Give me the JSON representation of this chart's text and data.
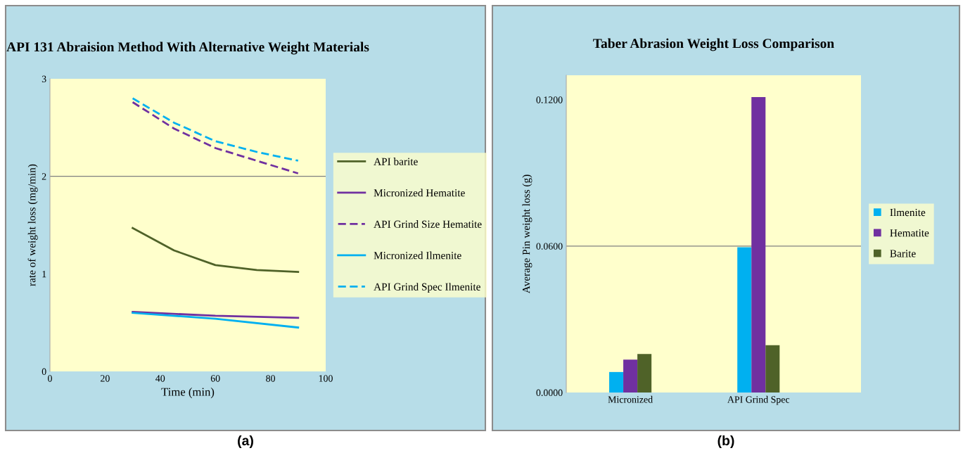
{
  "chart_data": [
    {
      "type": "line",
      "title": "API 131 Abraision Method With Alternative Weight Materials",
      "xlabel": "Time (min)",
      "ylabel": "rate of weight loss (mg/min)",
      "xlim": [
        0,
        100
      ],
      "xticks": [
        0,
        20,
        40,
        60,
        80,
        100
      ],
      "ylim": [
        0,
        3
      ],
      "yticks": [
        0,
        1,
        2,
        3
      ],
      "ref_lines": [
        {
          "axis": "y",
          "value": 2,
          "color": "#808080"
        }
      ],
      "legend": "right",
      "grid": false,
      "annotations": [
        "(a)"
      ],
      "series": [
        {
          "name": "API barite",
          "color": "#4f6228",
          "line_style": "solid",
          "x": [
            30,
            45,
            60,
            75,
            90
          ],
          "values": [
            1.47,
            1.24,
            1.09,
            1.04,
            1.02
          ]
        },
        {
          "name": "Micronized Hematite",
          "color": "#7030a0",
          "line_style": "solid",
          "x": [
            30,
            60,
            90
          ],
          "values": [
            0.61,
            0.57,
            0.55
          ]
        },
        {
          "name": "API Grind Size Hematite",
          "color": "#7030a0",
          "line_style": "dashed",
          "x": [
            30,
            45,
            60,
            75,
            90
          ],
          "values": [
            2.76,
            2.49,
            2.29,
            2.16,
            2.03
          ]
        },
        {
          "name": "Micronized Ilmenite",
          "color": "#00b0f0",
          "line_style": "solid",
          "x": [
            30,
            60,
            90
          ],
          "values": [
            0.6,
            0.54,
            0.45
          ]
        },
        {
          "name": "API Grind Spec Ilmenite",
          "color": "#00b0f0",
          "line_style": "dashed",
          "x": [
            30,
            45,
            60,
            75,
            90
          ],
          "values": [
            2.8,
            2.55,
            2.36,
            2.25,
            2.16
          ]
        }
      ]
    },
    {
      "type": "bar",
      "title": "Taber Abrasion Weight Loss Comparison",
      "ylabel": "Average Pin weight loss (g)",
      "categories": [
        "Micronized",
        "API Grind Spec"
      ],
      "ylim": [
        0,
        0.13
      ],
      "yticks": [
        {
          "value": 0,
          "label": "0.0000"
        },
        {
          "value": 0.06,
          "label": "0.0600"
        },
        {
          "value": 0.12,
          "label": "0.1200"
        }
      ],
      "ref_lines": [
        {
          "axis": "y",
          "value": 0.06,
          "color": "#808080"
        }
      ],
      "legend": "right",
      "grid": false,
      "annotations": [
        "(b)"
      ],
      "series": [
        {
          "name": "Ilmenite",
          "color": "#00b0f0",
          "values": [
            0.0084,
            0.0595
          ]
        },
        {
          "name": "Hematite",
          "color": "#7030a0",
          "values": [
            0.0135,
            0.1211
          ]
        },
        {
          "name": "Barite",
          "color": "#4f6228",
          "values": [
            0.0158,
            0.0194
          ]
        }
      ]
    }
  ]
}
